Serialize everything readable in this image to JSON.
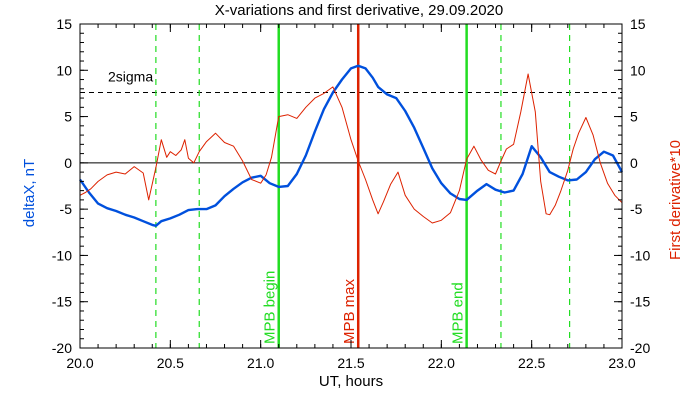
{
  "chart_data": {
    "type": "line",
    "title": "X-variations and first derivative, 29.09.2020",
    "xlabel": "UT, hours",
    "ylabel_left": "deltaX, nT",
    "ylabel_right": "First derivative*10",
    "xlim": [
      20.0,
      23.0
    ],
    "ylim": [
      -20,
      15
    ],
    "xticks": [
      {
        "value": 20.0,
        "label": "20.0"
      },
      {
        "value": 20.5,
        "label": "20.5"
      },
      {
        "value": 21.0,
        "label": "21.0"
      },
      {
        "value": 21.5,
        "label": "21.5"
      },
      {
        "value": 22.0,
        "label": "22.0"
      },
      {
        "value": 22.5,
        "label": "22.5"
      },
      {
        "value": 23.0,
        "label": "23.0"
      }
    ],
    "yticks": [
      {
        "value": 15,
        "label": "15"
      },
      {
        "value": 10,
        "label": "10"
      },
      {
        "value": 5,
        "label": "5"
      },
      {
        "value": 0,
        "label": "0"
      },
      {
        "value": -5,
        "label": "-5"
      },
      {
        "value": -10,
        "label": "-10"
      },
      {
        "value": -15,
        "label": "-15"
      },
      {
        "value": -20,
        "label": "-20"
      }
    ],
    "sigma": {
      "label": "2sigma",
      "value": 7.6
    },
    "vlines": [
      {
        "x": 20.42,
        "style": "dashed",
        "color": "#22dd22"
      },
      {
        "x": 20.66,
        "style": "dashed",
        "color": "#22dd22"
      },
      {
        "x": 21.1,
        "style": "solid",
        "color": "#22dd22",
        "label": "MPB begin"
      },
      {
        "x": 21.54,
        "style": "solid",
        "color": "#dd2200",
        "label": "MPB max"
      },
      {
        "x": 22.14,
        "style": "solid",
        "color": "#22dd22",
        "label": "MPB end"
      },
      {
        "x": 22.33,
        "style": "dashed",
        "color": "#22dd22"
      },
      {
        "x": 22.71,
        "style": "dashed",
        "color": "#22dd22"
      }
    ],
    "series": [
      {
        "key": "deltaX",
        "color": "#0050dd",
        "x": [
          20.0,
          20.05,
          20.1,
          20.15,
          20.2,
          20.25,
          20.3,
          20.35,
          20.4,
          20.42,
          20.45,
          20.5,
          20.55,
          20.6,
          20.65,
          20.7,
          20.75,
          20.8,
          20.85,
          20.9,
          20.95,
          21.0,
          21.05,
          21.1,
          21.15,
          21.2,
          21.25,
          21.3,
          21.35,
          21.4,
          21.45,
          21.5,
          21.54,
          21.58,
          21.62,
          21.65,
          21.7,
          21.75,
          21.8,
          21.85,
          21.9,
          21.95,
          22.0,
          22.05,
          22.1,
          22.14,
          22.2,
          22.25,
          22.3,
          22.35,
          22.4,
          22.45,
          22.48,
          22.5,
          22.55,
          22.6,
          22.65,
          22.7,
          22.75,
          22.8,
          22.85,
          22.9,
          22.95,
          23.0
        ],
        "y": [
          -1.8,
          -3.2,
          -4.4,
          -4.9,
          -5.2,
          -5.6,
          -5.9,
          -6.3,
          -6.7,
          -6.8,
          -6.3,
          -6.0,
          -5.6,
          -5.1,
          -5.0,
          -5.0,
          -4.6,
          -3.6,
          -2.8,
          -2.1,
          -1.6,
          -1.4,
          -2.2,
          -2.6,
          -2.5,
          -1.2,
          0.8,
          3.4,
          5.8,
          7.6,
          9.0,
          10.2,
          10.5,
          10.2,
          9.2,
          8.2,
          7.4,
          7.0,
          5.6,
          3.8,
          1.6,
          -0.6,
          -2.2,
          -3.3,
          -3.9,
          -4.0,
          -3.0,
          -2.3,
          -2.9,
          -3.2,
          -3.0,
          -1.2,
          0.6,
          1.8,
          0.6,
          -1.0,
          -1.5,
          -1.9,
          -1.8,
          -1.0,
          0.4,
          1.2,
          0.8,
          -1.0
        ]
      },
      {
        "key": "derivative",
        "color": "#dd2200",
        "x": [
          20.0,
          20.03,
          20.06,
          20.1,
          20.15,
          20.2,
          20.25,
          20.3,
          20.35,
          20.38,
          20.42,
          20.45,
          20.48,
          20.5,
          20.53,
          20.56,
          20.58,
          20.6,
          20.63,
          20.66,
          20.7,
          20.75,
          20.8,
          20.85,
          20.9,
          20.95,
          21.0,
          21.03,
          21.06,
          21.1,
          21.15,
          21.2,
          21.25,
          21.3,
          21.35,
          21.4,
          21.45,
          21.5,
          21.54,
          21.58,
          21.62,
          21.65,
          21.68,
          21.72,
          21.76,
          21.8,
          21.85,
          21.9,
          21.95,
          22.0,
          22.05,
          22.1,
          22.14,
          22.18,
          22.22,
          22.26,
          22.3,
          22.33,
          22.36,
          22.4,
          22.44,
          22.48,
          22.52,
          22.55,
          22.58,
          22.6,
          22.63,
          22.66,
          22.7,
          22.73,
          22.76,
          22.8,
          22.84,
          22.88,
          22.92,
          22.96,
          23.0
        ],
        "y": [
          -3.5,
          -3.2,
          -2.8,
          -2.0,
          -1.3,
          -1.0,
          -1.2,
          -0.4,
          -1.1,
          -4.0,
          -0.5,
          2.5,
          0.6,
          1.2,
          0.8,
          1.4,
          2.5,
          0.5,
          0.0,
          1.2,
          2.3,
          3.2,
          2.2,
          1.8,
          0.2,
          -1.8,
          -2.2,
          -1.3,
          0.6,
          5.0,
          5.2,
          4.8,
          6.0,
          7.0,
          7.5,
          8.2,
          6.0,
          2.5,
          0.2,
          -1.8,
          -4.0,
          -5.5,
          -4.2,
          -2.3,
          -1.0,
          -3.5,
          -5.0,
          -5.8,
          -6.5,
          -6.2,
          -5.4,
          -3.0,
          0.4,
          1.8,
          0.3,
          -0.8,
          -1.2,
          0.2,
          1.5,
          2.0,
          5.5,
          9.6,
          5.5,
          -2.0,
          -5.5,
          -5.6,
          -4.6,
          -3.1,
          -0.8,
          1.5,
          3.2,
          4.9,
          3.0,
          0.0,
          -2.2,
          -3.5,
          -4.3
        ]
      }
    ]
  }
}
